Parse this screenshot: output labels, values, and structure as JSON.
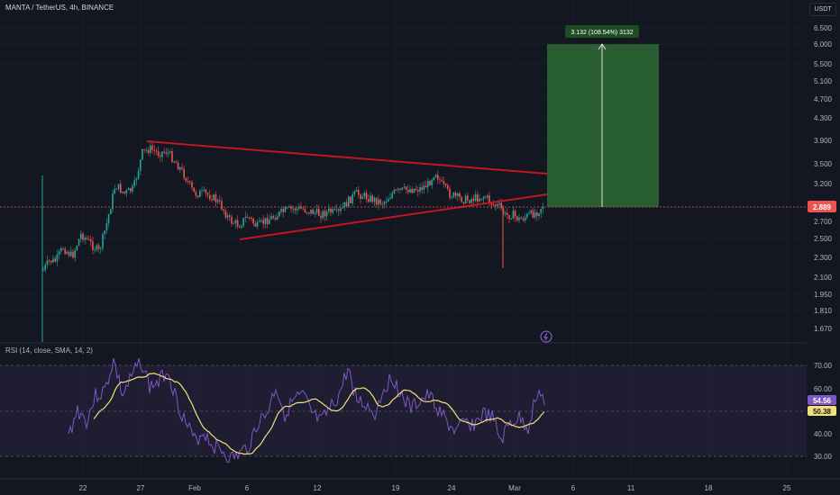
{
  "header": {
    "title": "MANTA / TetherUS, 4h, BINANCE",
    "currency": "USDT"
  },
  "price_axis": {
    "ticks": [
      "6.500",
      "6.000",
      "5.500",
      "5.100",
      "4.700",
      "4.300",
      "3.900",
      "3.500",
      "3.200",
      "2.700",
      "2.500",
      "2.300",
      "2.100",
      "1.950",
      "1.810",
      "1.670"
    ],
    "current_price": "2.889"
  },
  "time_axis": {
    "ticks": [
      "22",
      "27",
      "Feb",
      "6",
      "12",
      "19",
      "24",
      "Mar",
      "6",
      "11",
      "18",
      "25"
    ]
  },
  "measure_tool": {
    "label": "3.132 (108.54%) 3132"
  },
  "rsi": {
    "title": "RSI (14, close, SMA, 14, 2)",
    "ticks": [
      "70.00",
      "60.00",
      "50.00",
      "40.00",
      "30.00"
    ],
    "rsi_value": "54.56",
    "sma_value": "50.38"
  },
  "colors": {
    "background": "#131722",
    "up": "#26a69a",
    "down": "#ef5350",
    "trendline": "#c2171f",
    "measure_box": "#2e6b35",
    "rsi_line": "#7e57c2",
    "rsi_sma": "#f5e17a"
  },
  "chart_data": {
    "type": "candlestick",
    "symbol": "MANTA / TetherUS",
    "interval": "4h",
    "exchange": "BINANCE",
    "last_price": 2.889,
    "rsi_last": 54.56,
    "rsi_sma_last": 50.38,
    "trendline_upper": [
      {
        "time": "27",
        "price": 3.9
      },
      {
        "time": "Mar",
        "price": 3.35
      }
    ],
    "trendline_lower": [
      {
        "time": "6",
        "price": 2.5
      },
      {
        "time": "Mar",
        "price": 3.08
      }
    ],
    "target_box": {
      "from_price": 2.889,
      "to_price": 6.0,
      "label": "3.132 (108.54%) 3132"
    }
  }
}
